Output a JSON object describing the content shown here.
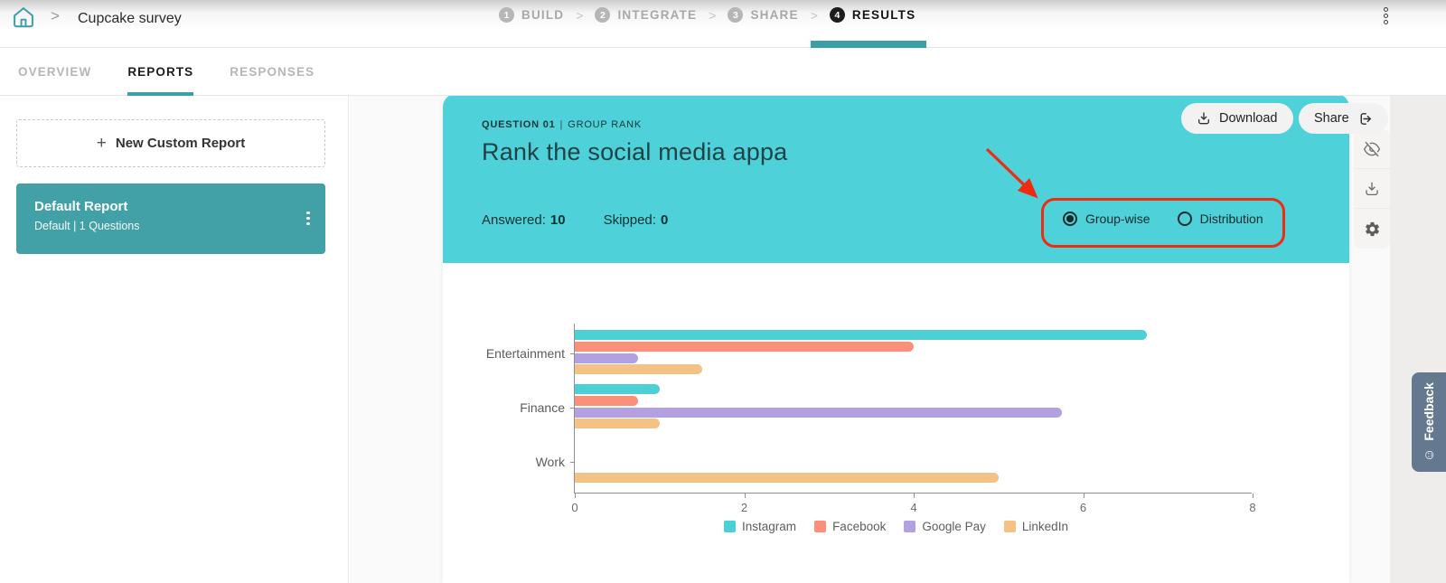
{
  "header": {
    "breadcrumb": "Cupcake survey",
    "steps": [
      {
        "num": "1",
        "label": "BUILD"
      },
      {
        "num": "2",
        "label": "INTEGRATE"
      },
      {
        "num": "3",
        "label": "SHARE"
      },
      {
        "num": "4",
        "label": "RESULTS"
      }
    ]
  },
  "tabs": {
    "items": [
      {
        "label": "OVERVIEW"
      },
      {
        "label": "REPORTS"
      },
      {
        "label": "RESPONSES"
      }
    ],
    "download_label": "Download",
    "share_label": "Share"
  },
  "sidebar": {
    "new_report_label": "New Custom Report",
    "report": {
      "title": "Default Report",
      "subtitle": "Default | 1 Questions"
    }
  },
  "question": {
    "kicker_bold": "QUESTION 01",
    "kicker_sep": "|",
    "kicker_type": "GROUP RANK",
    "title": "Rank the social media appa",
    "answered_label": "Answered:",
    "answered_value": "10",
    "skipped_label": "Skipped:",
    "skipped_value": "0",
    "view_options": [
      {
        "label": "Group-wise",
        "selected": true
      },
      {
        "label": "Distribution",
        "selected": false
      }
    ]
  },
  "feedback_label": "Feedback",
  "icons": [
    "home-icon",
    "kebab-icon",
    "download-icon",
    "share-exit-icon",
    "plus-icon",
    "eye-off-icon",
    "gear-icon",
    "radio-icon",
    "smiley-icon",
    "red-arrow-annotation"
  ],
  "colors": {
    "accent_teal": "#39a0a8",
    "question_header": "#4ed1d8",
    "report_card": "#42a0a7",
    "annotation_red": "#ef2b11",
    "feedback_tab": "#64798f"
  },
  "chart_data": {
    "type": "bar",
    "orientation": "horizontal",
    "title": "",
    "categories": [
      "Entertainment",
      "Finance",
      "Work"
    ],
    "series": [
      {
        "name": "Instagram",
        "color": "#4ccfd5",
        "values": [
          6.75,
          1.0,
          0
        ]
      },
      {
        "name": "Facebook",
        "color": "#f8907a",
        "values": [
          4.0,
          0.75,
          0
        ]
      },
      {
        "name": "Google Pay",
        "color": "#b3a0e1",
        "values": [
          0.75,
          5.75,
          0
        ]
      },
      {
        "name": "LinkedIn",
        "color": "#f3c284",
        "values": [
          1.5,
          1.0,
          5.0
        ]
      }
    ],
    "xlim": [
      0,
      8
    ],
    "xticks": [
      0,
      2,
      4,
      6,
      8
    ],
    "grid": false,
    "legend_position": "bottom"
  }
}
